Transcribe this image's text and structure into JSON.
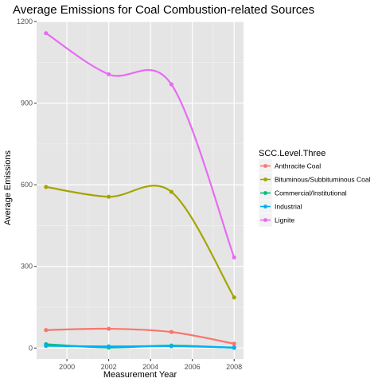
{
  "chart_data": {
    "type": "line",
    "title": "Average Emissions for Coal Combustion-related Sources",
    "xlabel": "Measurement Year",
    "ylabel": "Average Emissions",
    "x": [
      1999,
      2002,
      2005,
      2008
    ],
    "xlim": [
      1998.55,
      2008.45
    ],
    "ylim": [
      -40,
      1200
    ],
    "x_ticks": [
      "2000",
      "2002",
      "2004",
      "2006",
      "2008"
    ],
    "y_ticks": [
      "0",
      "300",
      "600",
      "900",
      "1200"
    ],
    "grid": true,
    "legend_title": "SCC.Level.Three",
    "legend_position": "right",
    "background": "#E5E5E5",
    "series": [
      {
        "name": "Anthracite Coal",
        "color": "#F8766D",
        "values": [
          66,
          71,
          59,
          16
        ]
      },
      {
        "name": "Bituminous/Subbituminous Coal",
        "color": "#A3A500",
        "values": [
          592,
          556,
          574,
          186
        ]
      },
      {
        "name": "Commercial/Institutional",
        "color": "#00BF7D",
        "values": [
          14,
          2,
          9,
          1
        ]
      },
      {
        "name": "Industrial",
        "color": "#00B0F6",
        "values": [
          8,
          6,
          7,
          2
        ]
      },
      {
        "name": "Lignite",
        "color": "#E76BF3",
        "values": [
          1157,
          1006,
          969,
          333
        ]
      }
    ]
  }
}
